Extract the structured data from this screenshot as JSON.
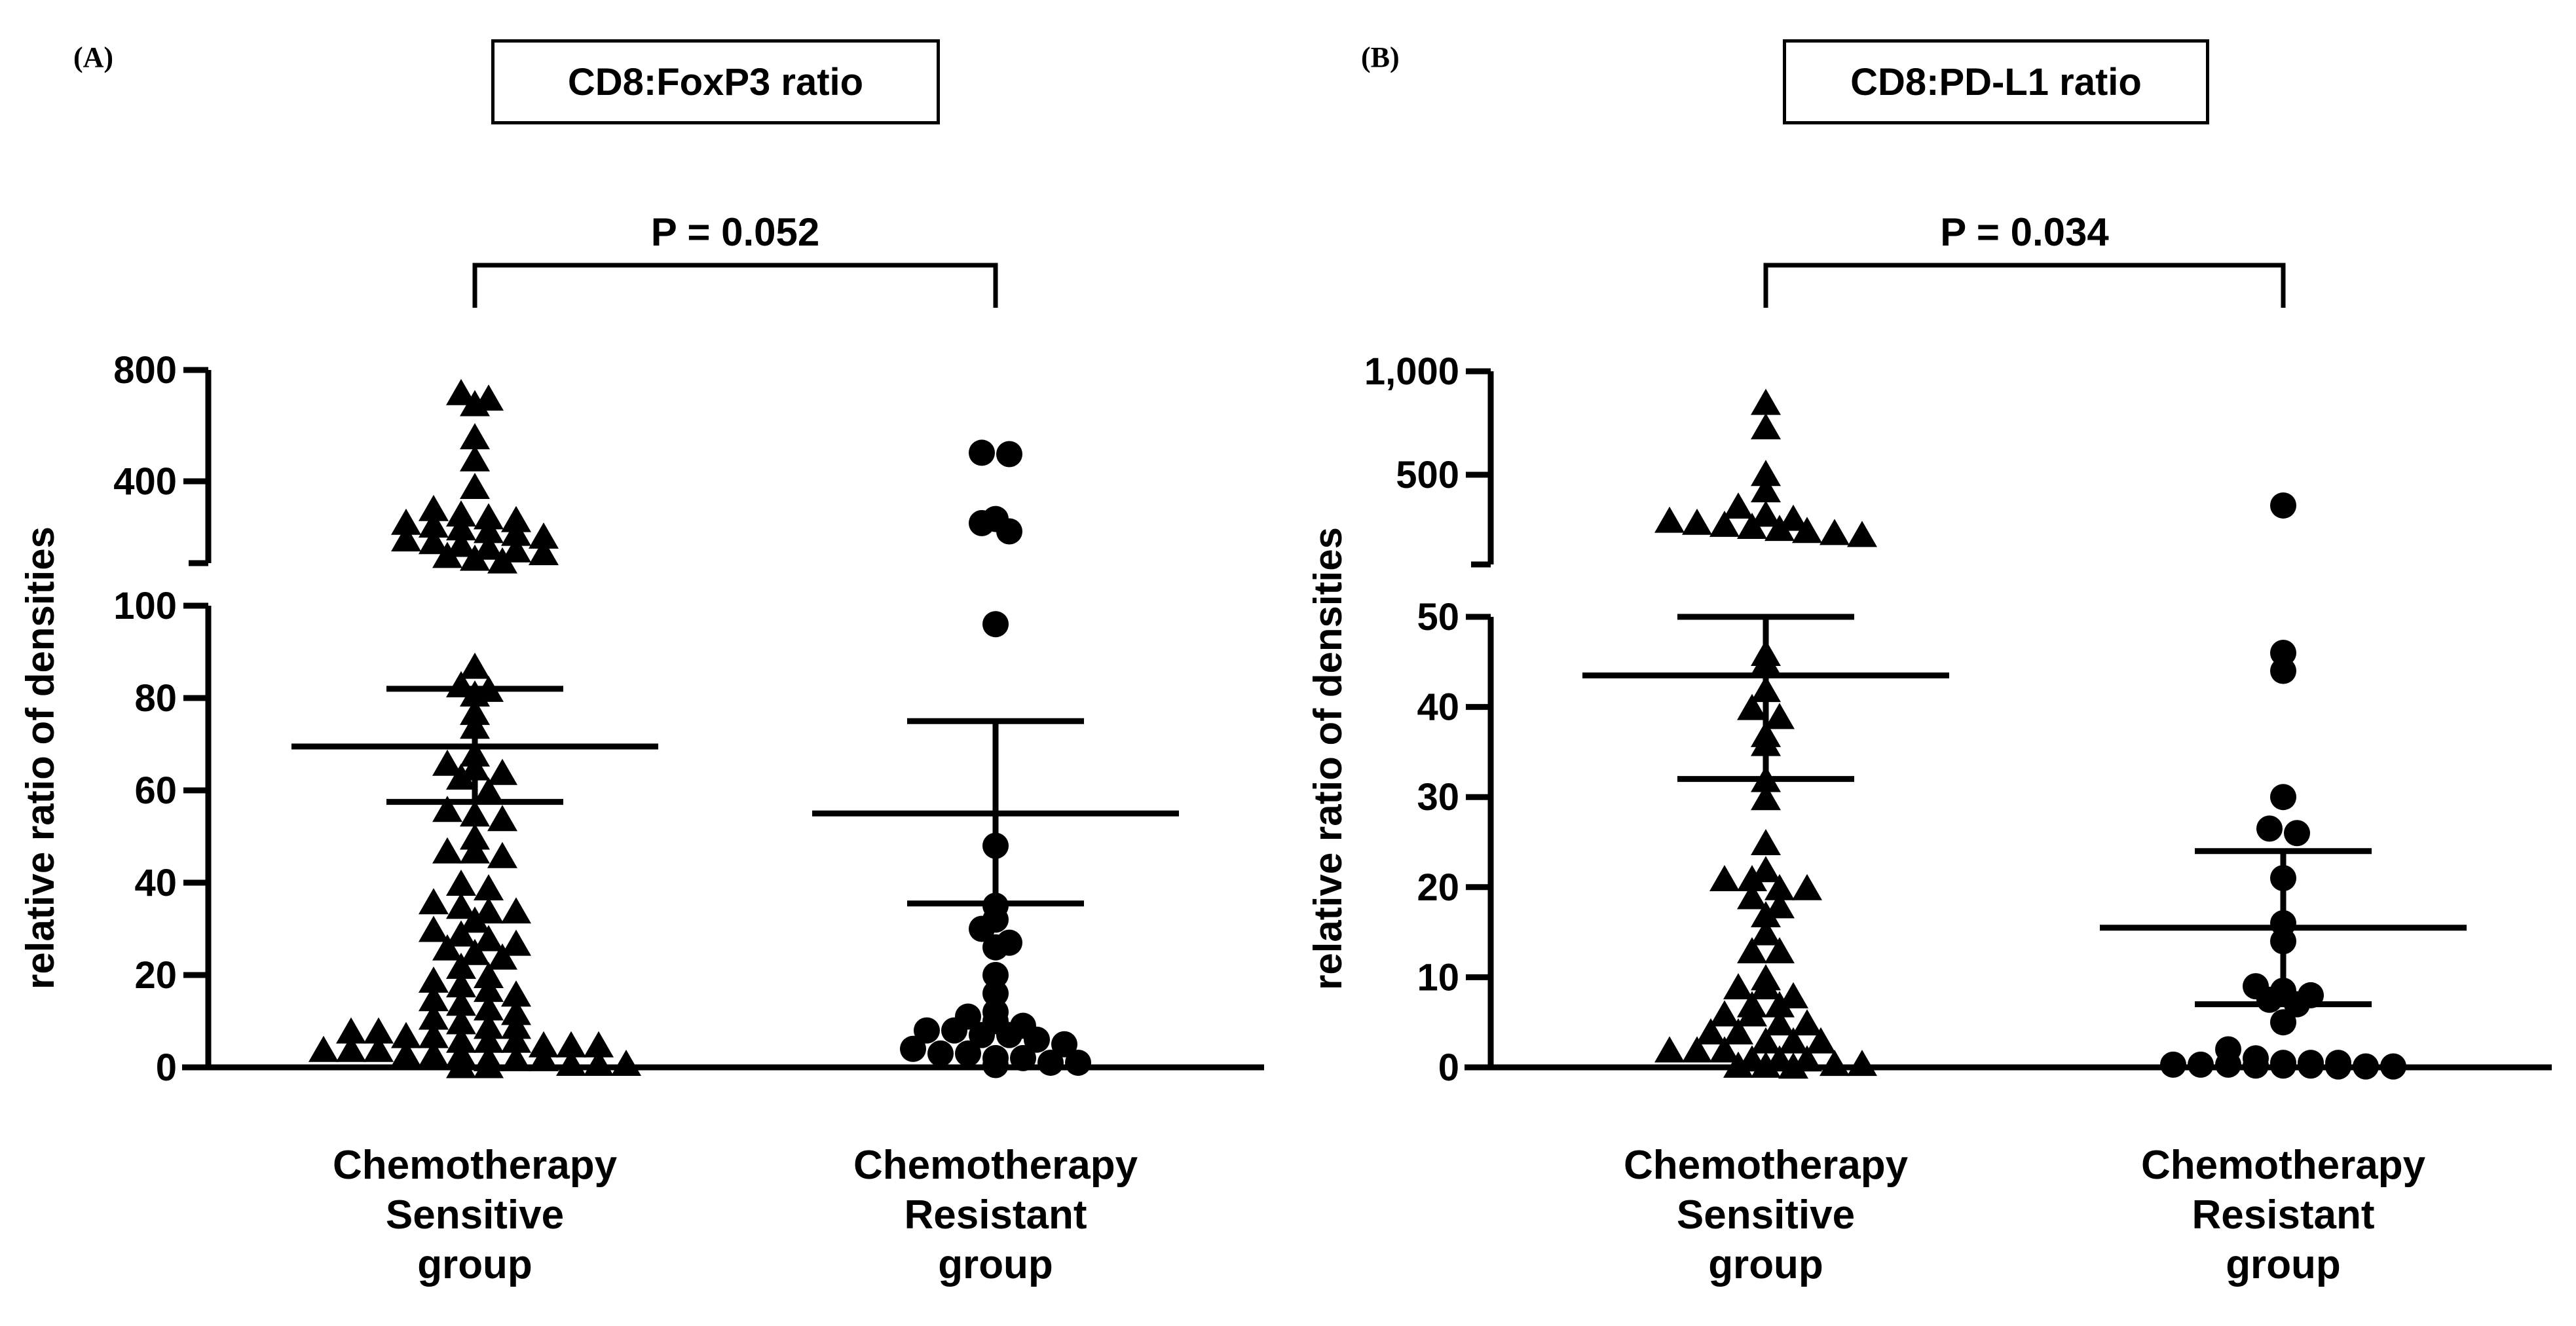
{
  "chart_data": [
    {
      "panel": "(A)",
      "type": "scatter",
      "title": "CD8:FoxP3 ratio",
      "ylabel": "relative ratio of densities",
      "xlabel": "",
      "y_axis": {
        "broken": true,
        "lower_segment": [
          0,
          100
        ],
        "upper_segment": [
          100,
          800
        ],
        "tick_labels": [
          "0",
          "20",
          "40",
          "60",
          "80",
          "100",
          "400",
          "800"
        ]
      },
      "p_value": "P = 0.052",
      "categories": [
        "Chemotherapy\nSensitive\ngroup",
        "Chemotherapy\nResistant\ngroup"
      ],
      "series": [
        {
          "category": "Chemotherapy\nSensitive\ngroup",
          "marker": "triangle",
          "mean": 69.5,
          "error_bar": [
            57.5,
            82
          ],
          "values": [
            720,
            700,
            680,
            560,
            480,
            380,
            300,
            280,
            270,
            260,
            250,
            240,
            230,
            220,
            210,
            200,
            190,
            180,
            170,
            160,
            150,
            140,
            130,
            120,
            110,
            87,
            83,
            82,
            81,
            77,
            74,
            68,
            66,
            65,
            64,
            63,
            60,
            56,
            55,
            54,
            50,
            47,
            47,
            46,
            40,
            39,
            36,
            35,
            34,
            34,
            32,
            30,
            29,
            28,
            27,
            26,
            25,
            24,
            22,
            20,
            19,
            18,
            17,
            16,
            15,
            14,
            13,
            12,
            11,
            10,
            9,
            9,
            8,
            8,
            7,
            7,
            6,
            6,
            6,
            5,
            5,
            5,
            4,
            4,
            4,
            3,
            3,
            3,
            2,
            2,
            2,
            1,
            1,
            1,
            0.5,
            0.5
          ]
        },
        {
          "category": "Chemotherapy\nResistant\ngroup",
          "marker": "circle",
          "mean": 55,
          "error_bar": [
            35.5,
            75
          ],
          "values": [
            500,
            495,
            260,
            245,
            215,
            96,
            48,
            35,
            32,
            30,
            27,
            26,
            20,
            16,
            12,
            11,
            10,
            9,
            8,
            8,
            7,
            7,
            6,
            5,
            4,
            3,
            3,
            2,
            2,
            1,
            1,
            0.5
          ]
        }
      ]
    },
    {
      "panel": "(B)",
      "type": "scatter",
      "title": "CD8:PD-L1 ratio",
      "ylabel": "relative ratio of densities",
      "xlabel": "",
      "y_axis": {
        "broken": true,
        "lower_segment": [
          0,
          50
        ],
        "upper_segment": [
          50,
          1000
        ],
        "tick_labels": [
          "0",
          "10",
          "20",
          "30",
          "40",
          "50",
          "500",
          "1,000"
        ]
      },
      "p_value": "P = 0.034",
      "categories": [
        "Chemotherapy\nSensitive\ngroup",
        "Chemotherapy\nResistant\ngroup"
      ],
      "series": [
        {
          "category": "Chemotherapy\nSensitive\ngroup",
          "marker": "triangle",
          "mean": 43.5,
          "error_bar": [
            32,
            50
          ],
          "values": [
            850,
            730,
            500,
            420,
            340,
            300,
            280,
            270,
            260,
            250,
            240,
            230,
            220,
            210,
            200,
            46,
            45,
            42,
            40,
            39,
            37,
            36,
            32,
            30,
            25,
            22,
            21,
            21,
            20,
            20,
            19,
            18,
            17,
            15,
            13,
            13,
            10,
            9,
            9,
            8,
            7,
            7,
            6,
            6,
            5,
            5,
            4,
            4,
            3,
            3,
            3,
            2,
            2,
            2,
            1,
            1,
            1,
            0.5,
            0.5,
            0.3,
            0.3,
            0.2
          ]
        },
        {
          "category": "Chemotherapy\nResistant\ngroup",
          "marker": "circle",
          "mean": 15.5,
          "error_bar": [
            7,
            24
          ],
          "values": [
            340,
            46,
            44,
            30,
            26.5,
            26,
            21,
            16,
            14,
            9,
            8.5,
            8,
            7.5,
            7,
            5,
            2,
            1,
            0.5,
            0.5,
            0.5,
            0.3,
            0.3,
            0.3,
            0.2,
            0.2,
            0.2,
            0.1,
            0.1,
            0.1
          ]
        }
      ]
    }
  ]
}
